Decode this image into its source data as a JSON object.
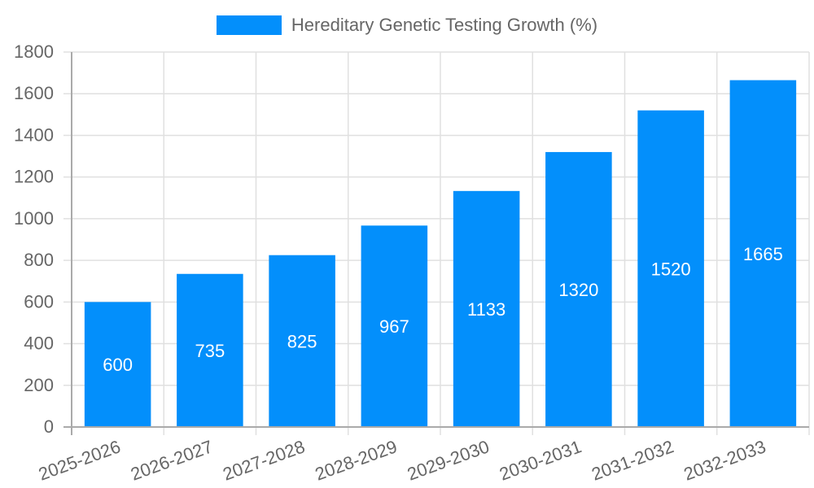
{
  "legend": {
    "label": "Hereditary Genetic Testing Growth (%)",
    "color": "#038ffb"
  },
  "chart_data": {
    "type": "bar",
    "title": "",
    "categories": [
      "2025-2026",
      "2026-2027",
      "2027-2028",
      "2028-2029",
      "2029-2030",
      "2030-2031",
      "2031-2032",
      "2032-2033"
    ],
    "series": [
      {
        "name": "Hereditary Genetic Testing Growth (%)",
        "values": [
          600,
          735,
          825,
          967,
          1133,
          1320,
          1520,
          1665
        ],
        "color": "#038ffb"
      }
    ],
    "xlabel": "",
    "ylabel": "",
    "ylim": [
      0,
      1800
    ],
    "yticks": [
      0,
      200,
      400,
      600,
      800,
      1000,
      1200,
      1400,
      1600,
      1800
    ],
    "grid": true,
    "legend_position": "top",
    "data_labels": true
  }
}
